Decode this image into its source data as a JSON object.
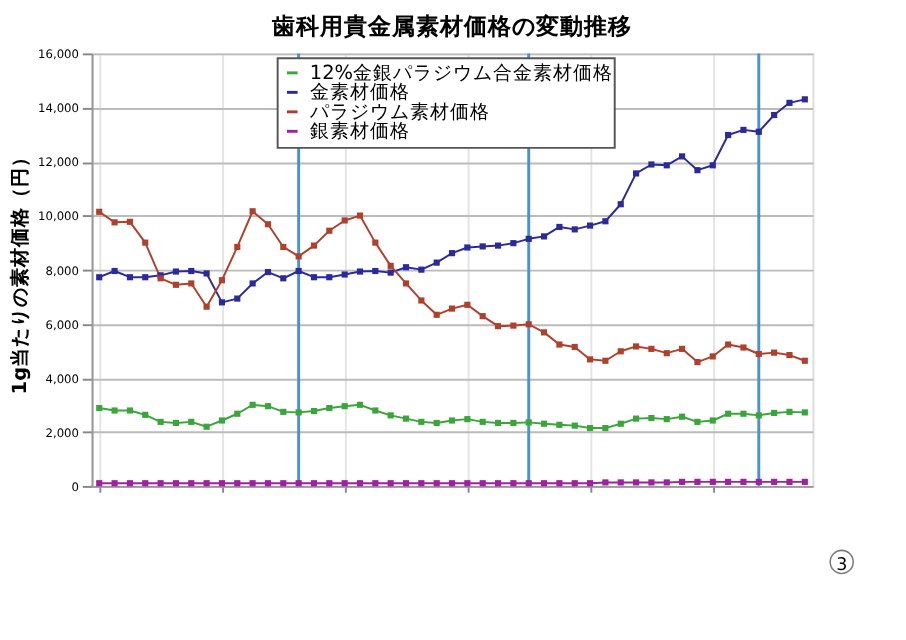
{
  "chart_data": {
    "type": "line",
    "title": "歯科用貴金属素材価格の変動推移",
    "ylabel": "1g当たりの素材価格（円）",
    "categories": [
      null,
      null,
      null,
      null,
      null,
      null,
      null,
      null,
      null,
      null,
      null,
      null,
      null,
      null,
      null,
      null,
      null,
      null,
      null,
      null,
      null,
      null,
      null,
      null,
      null,
      null,
      null,
      null,
      null,
      null,
      null,
      null,
      null,
      null,
      null,
      null,
      null,
      null,
      null,
      null,
      null,
      null,
      null,
      null,
      null,
      null,
      null
    ],
    "series": [
      {
        "name": "12%金銀パラジウム合金素材価格",
        "color": "#3aa63a",
        "values": [
          2880,
          2790,
          2790,
          2630,
          2370,
          2330,
          2370,
          2190,
          2420,
          2670,
          3000,
          2950,
          2740,
          2720,
          2770,
          2880,
          2950,
          3000,
          2790,
          2610,
          2490,
          2370,
          2330,
          2420,
          2470,
          2370,
          2330,
          2330,
          2350,
          2300,
          2260,
          2230,
          2140,
          2140,
          2300,
          2490,
          2510,
          2470,
          2560,
          2370,
          2420,
          2670,
          2670,
          2610,
          2700,
          2740,
          2720
        ]
      },
      {
        "name": "金素材価格",
        "color": "#2a2a9c",
        "values": [
          7720,
          7950,
          7720,
          7720,
          7790,
          7930,
          7950,
          7860,
          6790,
          6930,
          7490,
          7910,
          7680,
          7950,
          7720,
          7720,
          7820,
          7930,
          7950,
          7890,
          8090,
          8000,
          8260,
          8610,
          8820,
          8860,
          8890,
          8980,
          9140,
          9230,
          9580,
          9490,
          9630,
          9790,
          10420,
          11560,
          11890,
          11860,
          12190,
          11680,
          11860,
          12980,
          13170,
          13100,
          13720,
          14170,
          14300
        ]
      },
      {
        "name": "パラジウム素材価格",
        "color": "#b0402c",
        "values": [
          10140,
          9750,
          9770,
          9000,
          7680,
          7440,
          7490,
          6630,
          7610,
          8840,
          10160,
          9680,
          8840,
          8490,
          8890,
          9440,
          9820,
          10000,
          9000,
          8140,
          7490,
          6860,
          6330,
          6560,
          6700,
          6280,
          5910,
          5930,
          5980,
          5680,
          5230,
          5140,
          4680,
          4630,
          4980,
          5160,
          5070,
          4910,
          5070,
          4580,
          4790,
          5230,
          5120,
          4880,
          4930,
          4840,
          4630
        ]
      },
      {
        "name": "銀素材価格",
        "color": "#a020a0",
        "values": [
          100,
          100,
          100,
          100,
          100,
          100,
          100,
          100,
          100,
          100,
          100,
          100,
          100,
          100,
          100,
          100,
          100,
          100,
          100,
          100,
          100,
          100,
          100,
          100,
          100,
          100,
          100,
          100,
          100,
          100,
          100,
          100,
          100,
          130,
          130,
          130,
          130,
          130,
          150,
          150,
          150,
          150,
          150,
          150,
          150,
          150,
          150
        ]
      }
    ],
    "ylim": [
      0,
      16000
    ],
    "yticks": [
      {
        "value": 0,
        "label": "0"
      },
      {
        "value": 2000,
        "label": "2,000"
      },
      {
        "value": 4000,
        "label": "4,000"
      },
      {
        "value": 6000,
        "label": "6,000"
      },
      {
        "value": 8000,
        "label": "8,000"
      },
      {
        "value": 10000,
        "label": "10,000"
      },
      {
        "value": 12000,
        "label": "12,000"
      },
      {
        "value": 14000,
        "label": "14,000"
      },
      {
        "value": 16000,
        "label": "16,000"
      }
    ],
    "annotations": [
      "3"
    ],
    "grid": true,
    "legend": "top right",
    "marker": "square",
    "line_style": "solid",
    "tick_labels": "y"
  }
}
